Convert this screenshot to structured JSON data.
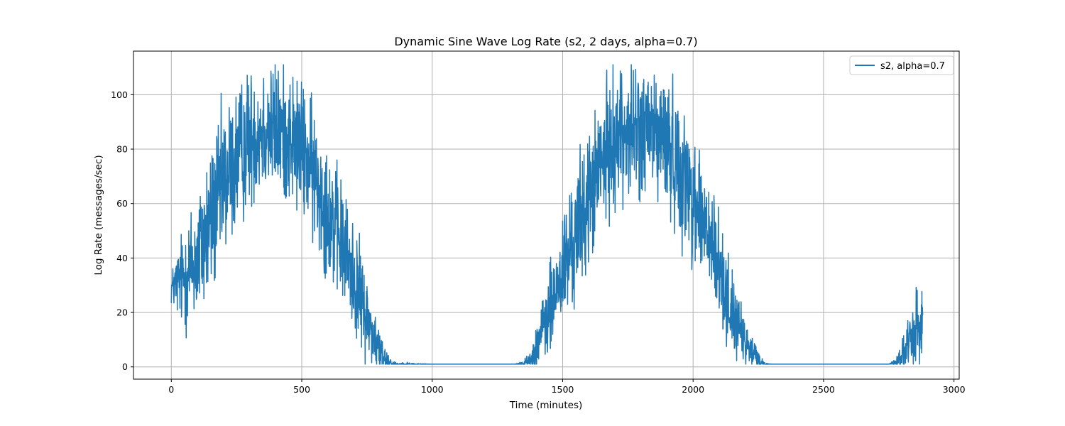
{
  "chart_data": {
    "type": "line",
    "title": "Dynamic Sine Wave Log Rate (s2, 2 days, alpha=0.7)",
    "xlabel": "Time (minutes)",
    "ylabel": "Log Rate (messages/sec)",
    "xlim": [
      -145,
      3020
    ],
    "ylim": [
      -4.5,
      116
    ],
    "xticks": [
      0,
      500,
      1000,
      1500,
      2000,
      2500,
      3000
    ],
    "yticks": [
      0,
      20,
      40,
      60,
      80,
      100
    ],
    "grid": true,
    "legend_position": "top-right",
    "series": [
      {
        "name": "s2, alpha=0.7",
        "color": "#1f77b4",
        "noisy": true,
        "x": [
          0,
          50,
          100,
          150,
          200,
          250,
          300,
          350,
          400,
          450,
          500,
          550,
          600,
          650,
          700,
          750,
          800,
          850,
          1000,
          1300,
          1350,
          1380,
          1400,
          1450,
          1500,
          1550,
          1600,
          1650,
          1700,
          1750,
          1800,
          1850,
          1900,
          1950,
          2000,
          2050,
          2100,
          2150,
          2200,
          2250,
          2270,
          2300,
          2500,
          2750,
          2780,
          2800,
          2830,
          2860,
          2880
        ],
        "y": [
          29,
          33,
          40,
          53,
          67,
          76,
          84,
          88,
          87,
          85,
          80,
          70,
          58,
          46,
          33,
          18,
          5,
          1,
          1,
          1,
          1,
          3,
          8,
          20,
          35,
          48,
          62,
          75,
          84,
          87,
          86,
          86,
          82,
          73,
          63,
          50,
          35,
          20,
          8,
          3,
          1,
          1,
          1,
          1,
          2,
          4,
          8,
          15,
          18
        ],
        "amplitude": [
          3,
          10,
          12,
          14,
          14,
          13,
          12,
          12,
          12,
          12,
          12,
          12,
          12,
          11,
          10,
          8,
          4,
          0.5,
          0,
          0,
          0.5,
          2,
          5,
          8,
          10,
          12,
          12,
          12,
          12,
          12,
          12,
          12,
          12,
          12,
          12,
          12,
          10,
          7,
          4,
          2,
          0.5,
          0,
          0,
          0,
          1,
          3,
          5,
          8,
          8
        ]
      }
    ]
  }
}
